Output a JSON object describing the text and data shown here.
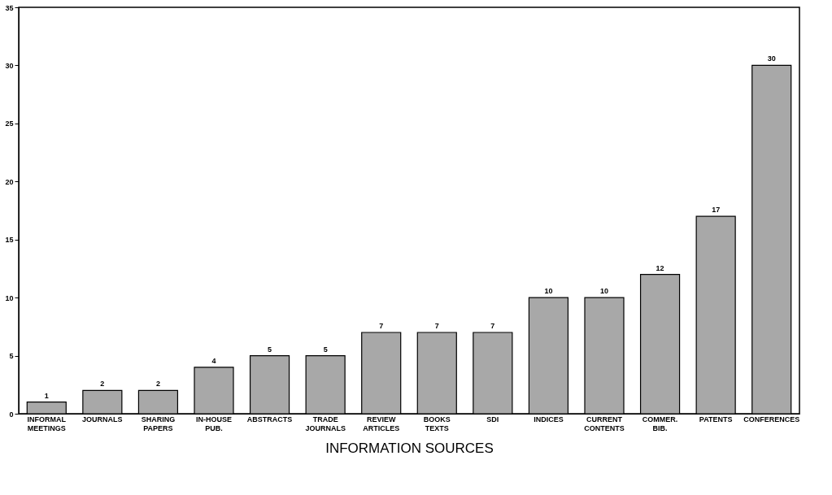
{
  "chart_data": {
    "type": "bar",
    "xlabel": "INFORMATION SOURCES",
    "categories": [
      "INFORMAL MEETINGS",
      "JOURNALS",
      "SHARING PAPERS",
      "IN-HOUSE PUB.",
      "ABSTRACTS",
      "TRADE JOURNALS",
      "REVIEW ARTICLES",
      "BOOKS TEXTS",
      "SDI",
      "INDICES",
      "CURRENT CONTENTS",
      "COMMER. BIB.",
      "PATENTS",
      "CONFERENCES"
    ],
    "values": [
      1,
      2,
      2,
      4,
      5,
      5,
      7,
      7,
      7,
      10,
      10,
      12,
      17,
      30
    ],
    "color": "#a8a8a8",
    "ylim": [
      0,
      35
    ],
    "yticks": [
      0,
      5,
      10,
      15,
      20,
      25,
      30,
      35
    ],
    "grid": false,
    "data_labels": true
  }
}
